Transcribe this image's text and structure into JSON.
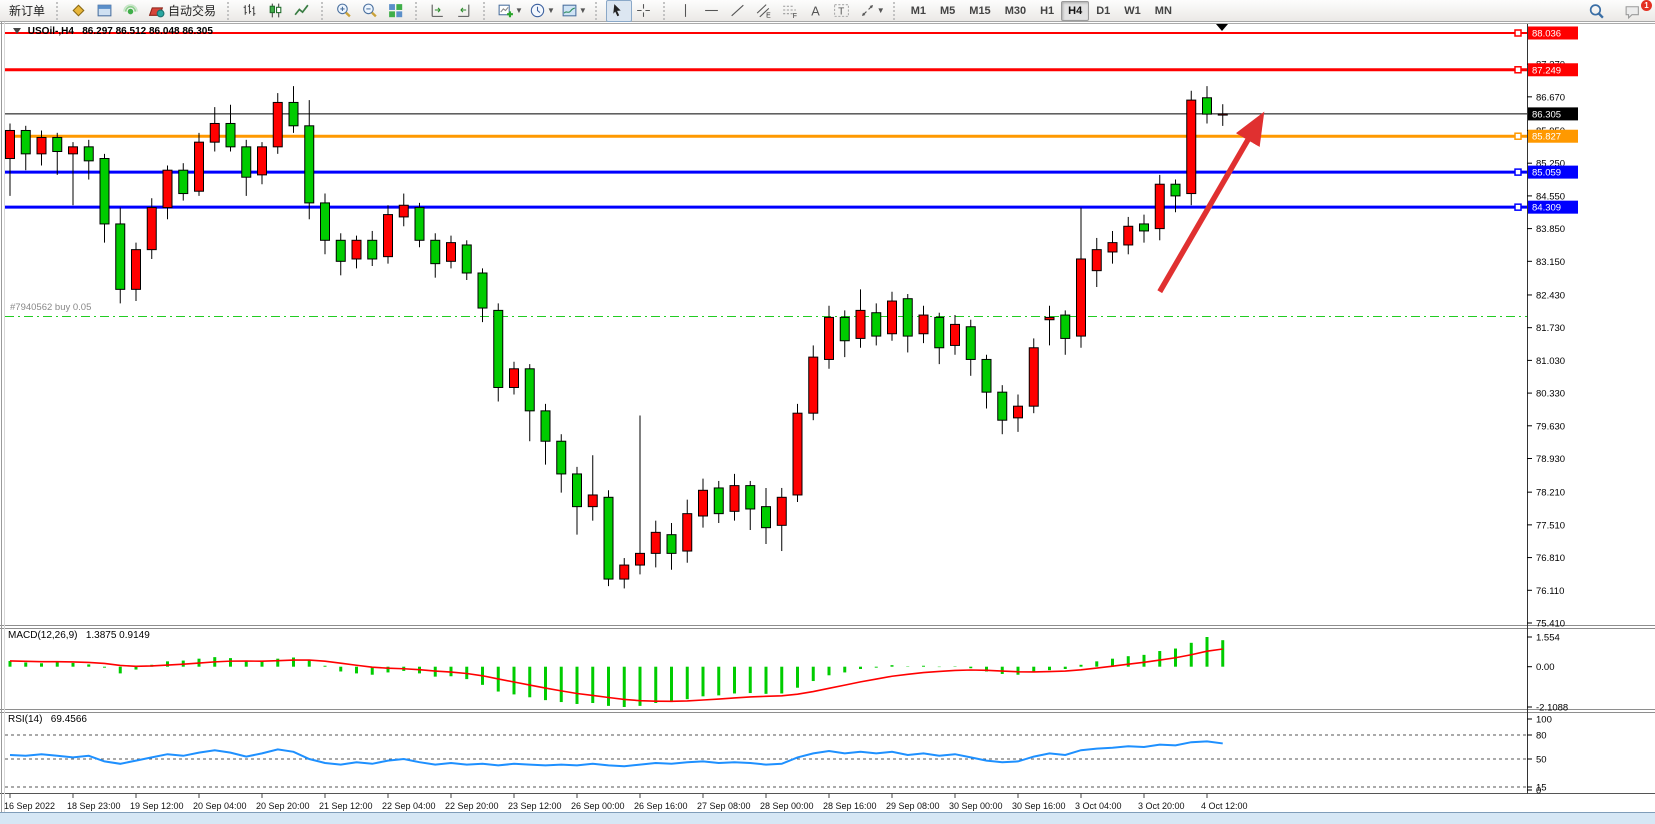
{
  "toolbar": {
    "groups": [
      {
        "items": [
          {
            "name": "new-order-button",
            "label": "新订单"
          }
        ]
      },
      {
        "items": [
          {
            "name": "market-watch-button",
            "icon": "gold-diamond-icon"
          },
          {
            "name": "data-window-button",
            "icon": "blue-window-icon"
          },
          {
            "name": "navigator-button",
            "icon": "signal-icon"
          },
          {
            "name": "auto-trading-button",
            "icon": "auto-trading-icon",
            "label": "自动交易"
          }
        ]
      },
      {
        "items": [
          {
            "name": "bar-chart-button",
            "icon": "bar-chart-icon"
          },
          {
            "name": "candlestick-chart-button",
            "icon": "candlestick-icon"
          },
          {
            "name": "line-chart-button",
            "icon": "line-chart-icon"
          }
        ]
      },
      {
        "items": [
          {
            "name": "zoom-in-button",
            "icon": "zoom-in-icon"
          },
          {
            "name": "zoom-out-button",
            "icon": "zoom-out-icon"
          },
          {
            "name": "tile-windows-button",
            "icon": "tile-windows-icon"
          }
        ]
      },
      {
        "items": [
          {
            "name": "chart-shift-button",
            "icon": "chart-shift-icon"
          },
          {
            "name": "chart-autoscroll-button",
            "icon": "chart-autoscroll-icon"
          }
        ]
      },
      {
        "items": [
          {
            "name": "new-chart-button",
            "icon": "new-chart-icon",
            "dropdown": true
          },
          {
            "name": "period-button",
            "icon": "clock-icon",
            "dropdown": true
          },
          {
            "name": "templates-button",
            "icon": "template-icon",
            "dropdown": true
          }
        ]
      },
      {
        "items": [
          {
            "name": "cursor-button",
            "icon": "cursor-icon",
            "active": true
          },
          {
            "name": "crosshair-button",
            "icon": "crosshair-icon"
          }
        ]
      },
      {
        "items": [
          {
            "name": "vertical-line-button",
            "icon": "vertical-line-icon"
          },
          {
            "name": "horizontal-line-button",
            "icon": "horizontal-line-icon"
          },
          {
            "name": "trendline-button",
            "icon": "trendline-icon"
          },
          {
            "name": "channel-button",
            "icon": "channel-icon"
          },
          {
            "name": "fibonacci-button",
            "icon": "fibonacci-icon"
          },
          {
            "name": "text-button",
            "icon": "text-icon"
          },
          {
            "name": "label-button",
            "icon": "label-icon"
          },
          {
            "name": "shapes-button",
            "icon": "shapes-icon",
            "dropdown": true
          }
        ]
      }
    ],
    "timeframes": [
      "M1",
      "M5",
      "M15",
      "M30",
      "H1",
      "H4",
      "D1",
      "W1",
      "MN"
    ],
    "active_timeframe": "H4",
    "right_items": [
      {
        "name": "search-button",
        "icon": "search-icon"
      },
      {
        "name": "notifications-button",
        "icon": "chat-icon",
        "badge": "1"
      }
    ]
  },
  "chart": {
    "symbol_period": "USOil-,H4",
    "ohlc_text": "86.297 86.512 86.048 86.305",
    "position_label": "#7940562 buy 0.05"
  },
  "indicators": {
    "macd_label": "MACD(12,26,9)",
    "macd_values": "1.3875 0.9149",
    "rsi_label": "RSI(14)",
    "rsi_value": "69.4566"
  },
  "chart_data": {
    "type": "candlestick",
    "symbol": "USOil-",
    "timeframe": "H4",
    "colors": {
      "up": "#FF0000",
      "down": "#00CC00",
      "wick": "#000000",
      "rsi_line": "#1E90FF",
      "macd_hist": "#00CC00",
      "macd_signal": "#FF0000",
      "arrow": "#E03030"
    },
    "price_axis": {
      "min": 75.41,
      "max": 88.036,
      "ticks": [
        "87.370",
        "86.670",
        "85.950",
        "85.250",
        "84.550",
        "83.850",
        "83.150",
        "82.430",
        "81.730",
        "81.030",
        "80.330",
        "79.630",
        "78.930",
        "78.210",
        "77.510",
        "76.810",
        "76.110",
        "75.410"
      ]
    },
    "price_badges": [
      {
        "text": "88.036",
        "price": 88.036,
        "color": "#FF0000",
        "text_color": "#FFFFFF"
      },
      {
        "text": "87.249",
        "price": 87.249,
        "color": "#FF0000",
        "text_color": "#FFFFFF"
      },
      {
        "text": "86.305",
        "price": 86.305,
        "color": "#000000",
        "text_color": "#FFFFFF"
      },
      {
        "text": "85.827",
        "price": 85.827,
        "color": "#FF9900",
        "text_color": "#FFFFFF"
      },
      {
        "text": "85.059",
        "price": 85.059,
        "color": "#0000FF",
        "text_color": "#FFFFFF"
      },
      {
        "text": "84.309",
        "price": 84.309,
        "color": "#0000FF",
        "text_color": "#FFFFFF"
      }
    ],
    "hlines": [
      {
        "price": 88.036,
        "color": "#FF0000",
        "width": 2,
        "style": "solid",
        "anchor": true
      },
      {
        "price": 87.249,
        "color": "#FF0000",
        "width": 3,
        "style": "solid",
        "anchor": true
      },
      {
        "price": 86.305,
        "color": "#000000",
        "width": 1,
        "style": "solid",
        "anchor": false
      },
      {
        "price": 85.827,
        "color": "#FF9900",
        "width": 3,
        "style": "solid",
        "anchor": true
      },
      {
        "price": 85.059,
        "color": "#0000FF",
        "width": 3,
        "style": "solid",
        "anchor": true
      },
      {
        "price": 84.309,
        "color": "#0000FF",
        "width": 3,
        "style": "solid",
        "anchor": true
      },
      {
        "price": 81.97,
        "color": "#22CC22",
        "width": 1,
        "style": "dashdot",
        "anchor": false
      }
    ],
    "candles": [
      [
        85.35,
        86.1,
        84.55,
        85.95
      ],
      [
        85.95,
        86.05,
        85.1,
        85.45
      ],
      [
        85.45,
        85.95,
        85.2,
        85.8
      ],
      [
        85.8,
        85.9,
        85.0,
        85.5
      ],
      [
        85.45,
        85.7,
        84.35,
        85.6
      ],
      [
        85.6,
        85.75,
        84.9,
        85.3
      ],
      [
        85.35,
        85.45,
        83.55,
        83.95
      ],
      [
        83.95,
        84.3,
        82.25,
        82.55
      ],
      [
        82.55,
        83.55,
        82.3,
        83.4
      ],
      [
        83.4,
        84.5,
        83.2,
        84.3
      ],
      [
        84.3,
        85.2,
        84.05,
        85.1
      ],
      [
        85.1,
        85.25,
        84.45,
        84.6
      ],
      [
        84.65,
        85.9,
        84.55,
        85.7
      ],
      [
        85.7,
        86.45,
        85.5,
        86.1
      ],
      [
        86.1,
        86.5,
        85.5,
        85.6
      ],
      [
        85.6,
        85.75,
        84.55,
        84.95
      ],
      [
        85.0,
        85.7,
        84.8,
        85.6
      ],
      [
        85.6,
        86.75,
        85.45,
        86.55
      ],
      [
        86.55,
        86.9,
        85.9,
        86.05
      ],
      [
        86.05,
        86.6,
        84.05,
        84.4
      ],
      [
        84.4,
        84.6,
        83.3,
        83.6
      ],
      [
        83.6,
        83.75,
        82.85,
        83.15
      ],
      [
        83.2,
        83.7,
        83.0,
        83.6
      ],
      [
        83.6,
        83.8,
        83.05,
        83.2
      ],
      [
        83.25,
        84.35,
        83.1,
        84.15
      ],
      [
        84.1,
        84.6,
        83.9,
        84.35
      ],
      [
        84.3,
        84.4,
        83.45,
        83.6
      ],
      [
        83.6,
        83.75,
        82.8,
        83.1
      ],
      [
        83.15,
        83.7,
        83.0,
        83.55
      ],
      [
        83.5,
        83.6,
        82.75,
        82.9
      ],
      [
        82.9,
        83.0,
        81.85,
        82.15
      ],
      [
        82.1,
        82.25,
        80.15,
        80.45
      ],
      [
        80.45,
        81.0,
        80.3,
        80.85
      ],
      [
        80.85,
        80.95,
        79.3,
        79.95
      ],
      [
        79.95,
        80.1,
        78.8,
        79.3
      ],
      [
        79.3,
        79.45,
        78.2,
        78.6
      ],
      [
        78.6,
        78.75,
        77.3,
        77.9
      ],
      [
        77.9,
        79.0,
        77.6,
        78.15
      ],
      [
        78.1,
        78.25,
        76.2,
        76.35
      ],
      [
        76.35,
        76.8,
        76.15,
        76.65
      ],
      [
        76.65,
        79.85,
        76.45,
        76.9
      ],
      [
        76.9,
        77.6,
        76.6,
        77.35
      ],
      [
        77.3,
        77.55,
        76.55,
        76.9
      ],
      [
        76.95,
        78.05,
        76.7,
        77.75
      ],
      [
        77.7,
        78.5,
        77.45,
        78.25
      ],
      [
        78.3,
        78.45,
        77.55,
        77.75
      ],
      [
        77.8,
        78.6,
        77.6,
        78.35
      ],
      [
        78.35,
        78.45,
        77.4,
        77.85
      ],
      [
        77.9,
        78.3,
        77.1,
        77.45
      ],
      [
        77.5,
        78.3,
        76.95,
        78.1
      ],
      [
        78.15,
        80.1,
        78.0,
        79.9
      ],
      [
        79.9,
        81.35,
        79.75,
        81.1
      ],
      [
        81.05,
        82.2,
        80.85,
        81.95
      ],
      [
        81.95,
        82.1,
        81.1,
        81.45
      ],
      [
        81.5,
        82.55,
        81.3,
        82.1
      ],
      [
        82.05,
        82.25,
        81.35,
        81.55
      ],
      [
        81.6,
        82.5,
        81.45,
        82.3
      ],
      [
        82.35,
        82.45,
        81.2,
        81.55
      ],
      [
        81.6,
        82.2,
        81.4,
        82.0
      ],
      [
        81.95,
        82.05,
        80.95,
        81.3
      ],
      [
        81.35,
        82.0,
        81.15,
        81.8
      ],
      [
        81.75,
        81.9,
        80.7,
        81.05
      ],
      [
        81.05,
        81.15,
        80.0,
        80.35
      ],
      [
        80.35,
        80.5,
        79.45,
        79.75
      ],
      [
        79.8,
        80.3,
        79.5,
        80.05
      ],
      [
        80.05,
        81.5,
        79.9,
        81.3
      ],
      [
        81.9,
        82.2,
        81.35,
        81.95
      ],
      [
        82.0,
        82.1,
        81.15,
        81.5
      ],
      [
        81.55,
        84.3,
        81.3,
        83.2
      ],
      [
        82.95,
        83.65,
        82.6,
        83.4
      ],
      [
        83.35,
        83.8,
        83.1,
        83.55
      ],
      [
        83.5,
        84.1,
        83.3,
        83.9
      ],
      [
        83.95,
        84.15,
        83.55,
        83.8
      ],
      [
        83.85,
        85.0,
        83.6,
        84.8
      ],
      [
        84.8,
        84.9,
        84.2,
        84.55
      ],
      [
        84.6,
        86.8,
        84.35,
        86.6
      ],
      [
        86.65,
        86.9,
        86.1,
        86.3
      ],
      [
        86.297,
        86.512,
        86.048,
        86.305
      ]
    ],
    "macd": {
      "params": "12,26,9",
      "ticks": [
        "1.554",
        "0.00",
        "-2.1088"
      ],
      "values": [
        0.3,
        0.22,
        0.18,
        0.25,
        0.2,
        0.12,
        -0.05,
        -0.35,
        -0.15,
        0.1,
        0.28,
        0.32,
        0.42,
        0.5,
        0.45,
        0.3,
        0.28,
        0.42,
        0.48,
        0.35,
        0.05,
        -0.25,
        -0.35,
        -0.42,
        -0.3,
        -0.22,
        -0.35,
        -0.52,
        -0.5,
        -0.65,
        -0.95,
        -1.3,
        -1.45,
        -1.6,
        -1.75,
        -1.85,
        -1.95,
        -1.9,
        -2.05,
        -2.1088,
        -2.05,
        -1.9,
        -1.85,
        -1.7,
        -1.55,
        -1.5,
        -1.4,
        -1.38,
        -1.42,
        -1.4,
        -1.1,
        -0.75,
        -0.45,
        -0.3,
        -0.12,
        -0.05,
        0.08,
        0.02,
        0.05,
        -0.02,
        0.02,
        -0.08,
        -0.25,
        -0.38,
        -0.42,
        -0.3,
        -0.18,
        -0.12,
        0.1,
        0.28,
        0.42,
        0.55,
        0.62,
        0.82,
        0.95,
        1.25,
        1.554,
        1.3875
      ]
    },
    "rsi": {
      "period": "14",
      "ticks": [
        "100",
        "80",
        "50",
        "15",
        "0"
      ],
      "levels": [
        80,
        50,
        15
      ],
      "values": [
        55,
        54,
        56,
        54,
        52,
        54,
        47,
        44,
        48,
        52,
        56,
        54,
        58,
        61,
        58,
        53,
        57,
        62,
        59,
        50,
        45,
        43,
        46,
        44,
        48,
        50,
        46,
        43,
        45,
        43,
        44,
        42,
        44,
        43,
        42,
        43,
        42,
        44,
        42,
        41,
        43,
        45,
        44,
        46,
        47,
        45,
        46,
        45,
        43,
        44,
        52,
        57,
        60,
        57,
        59,
        57,
        59,
        55,
        57,
        54,
        56,
        52,
        48,
        46,
        47,
        53,
        57,
        55,
        61,
        63,
        64,
        66,
        65,
        68,
        67,
        71,
        72,
        69.4566
      ]
    },
    "time_labels": [
      {
        "label": "16 Sep 2022",
        "bar": 0
      },
      {
        "label": "18 Sep 23:00",
        "bar": 4
      },
      {
        "label": "19 Sep 12:00",
        "bar": 8
      },
      {
        "label": "20 Sep 04:00",
        "bar": 12
      },
      {
        "label": "20 Sep 20:00",
        "bar": 16
      },
      {
        "label": "21 Sep 12:00",
        "bar": 20
      },
      {
        "label": "22 Sep 04:00",
        "bar": 24
      },
      {
        "label": "22 Sep 20:00",
        "bar": 28
      },
      {
        "label": "23 Sep 12:00",
        "bar": 32
      },
      {
        "label": "26 Sep 00:00",
        "bar": 36
      },
      {
        "label": "26 Sep 16:00",
        "bar": 40
      },
      {
        "label": "27 Sep 08:00",
        "bar": 44
      },
      {
        "label": "28 Sep 00:00",
        "bar": 48
      },
      {
        "label": "28 Sep 16:00",
        "bar": 52
      },
      {
        "label": "29 Sep 08:00",
        "bar": 56
      },
      {
        "label": "30 Sep 00:00",
        "bar": 60
      },
      {
        "label": "30 Sep 16:00",
        "bar": 64
      },
      {
        "label": "3 Oct 04:00",
        "bar": 68
      },
      {
        "label": "3 Oct 20:00",
        "bar": 72
      },
      {
        "label": "4 Oct 12:00",
        "bar": 76
      }
    ],
    "arrow": {
      "from_bar": 73,
      "from_price": 82.5,
      "to_bar": 79.2,
      "to_price": 86.1
    }
  }
}
